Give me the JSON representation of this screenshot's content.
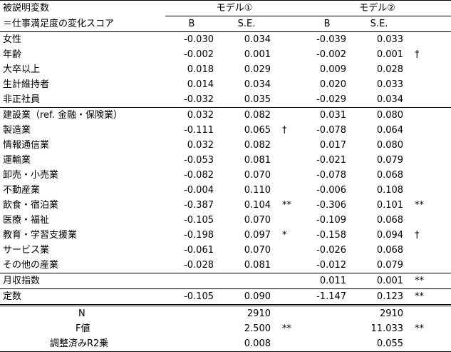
{
  "header": {
    "var_label_1": "被説明変数",
    "var_label_2": "＝仕事満足度の変化スコア",
    "model1": "モデル①",
    "model2": "モデル②",
    "col_b": "B",
    "col_se": "S.E."
  },
  "rows": [
    {
      "label": "女性",
      "b1": "-0.030",
      "se1": "0.034",
      "sig1": "",
      "b2": "-0.039",
      "se2": "0.033",
      "sig2": ""
    },
    {
      "label": "年齢",
      "b1": "-0.002",
      "se1": "0.001",
      "sig1": "",
      "b2": "-0.002",
      "se2": "0.001",
      "sig2": "†"
    },
    {
      "label": "大卒以上",
      "b1": "0.018",
      "se1": "0.029",
      "sig1": "",
      "b2": "0.009",
      "se2": "0.028",
      "sig2": ""
    },
    {
      "label": "生計維持者",
      "b1": "0.014",
      "se1": "0.034",
      "sig1": "",
      "b2": "0.020",
      "se2": "0.033",
      "sig2": ""
    },
    {
      "label": "非正社員",
      "b1": "-0.032",
      "se1": "0.035",
      "sig1": "",
      "b2": "-0.029",
      "se2": "0.034",
      "sig2": ""
    },
    {
      "label": "建設業（ref. 金融・保険業）",
      "b1": "0.032",
      "se1": "0.082",
      "sig1": "",
      "b2": "0.031",
      "se2": "0.080",
      "sig2": ""
    },
    {
      "label": "製造業",
      "b1": "-0.111",
      "se1": "0.065",
      "sig1": "†",
      "b2": "-0.078",
      "se2": "0.064",
      "sig2": ""
    },
    {
      "label": "情報通信業",
      "b1": "0.032",
      "se1": "0.082",
      "sig1": "",
      "b2": "0.017",
      "se2": "0.080",
      "sig2": ""
    },
    {
      "label": "運輸業",
      "b1": "-0.053",
      "se1": "0.081",
      "sig1": "",
      "b2": "-0.021",
      "se2": "0.079",
      "sig2": ""
    },
    {
      "label": "卸売・小売業",
      "b1": "-0.082",
      "se1": "0.070",
      "sig1": "",
      "b2": "-0.078",
      "se2": "0.068",
      "sig2": ""
    },
    {
      "label": "不動産業",
      "b1": "-0.004",
      "se1": "0.110",
      "sig1": "",
      "b2": "-0.006",
      "se2": "0.108",
      "sig2": ""
    },
    {
      "label": "飲食・宿泊業",
      "b1": "-0.387",
      "se1": "0.104",
      "sig1": "**",
      "b2": "-0.306",
      "se2": "0.101",
      "sig2": "**"
    },
    {
      "label": "医療・福祉",
      "b1": "-0.105",
      "se1": "0.070",
      "sig1": "",
      "b2": "-0.109",
      "se2": "0.068",
      "sig2": ""
    },
    {
      "label": "教育・学習支援業",
      "b1": "-0.198",
      "se1": "0.097",
      "sig1": "*",
      "b2": "-0.158",
      "se2": "0.094",
      "sig2": "†"
    },
    {
      "label": "サービス業",
      "b1": "-0.061",
      "se1": "0.070",
      "sig1": "",
      "b2": "-0.026",
      "se2": "0.068",
      "sig2": ""
    },
    {
      "label": "その他の産業",
      "b1": "-0.028",
      "se1": "0.081",
      "sig1": "",
      "b2": "-0.012",
      "se2": "0.079",
      "sig2": ""
    },
    {
      "label": "月収指数",
      "b1": "",
      "se1": "",
      "sig1": "",
      "b2": "0.011",
      "se2": "0.001",
      "sig2": "**"
    },
    {
      "label": "定数",
      "b1": "-0.105",
      "se1": "0.090",
      "sig1": "",
      "b2": "-1.147",
      "se2": "0.123",
      "sig2": "**"
    }
  ],
  "stats": [
    {
      "label": "N",
      "m1": "2910",
      "sig1": "",
      "m2": "2910",
      "sig2": ""
    },
    {
      "label": "F値",
      "m1": "2.500",
      "sig1": "**",
      "m2": "11.033",
      "sig2": "**"
    },
    {
      "label": "調整済みR2乗",
      "m1": "0.008",
      "sig1": "",
      "m2": "0.055",
      "sig2": ""
    }
  ]
}
